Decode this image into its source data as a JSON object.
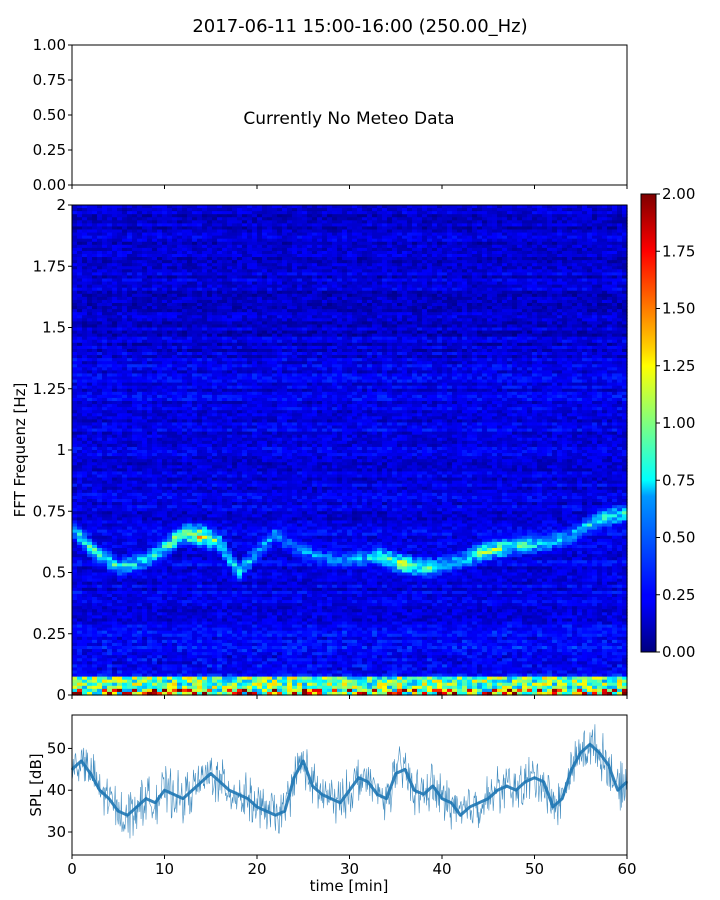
{
  "figure": {
    "title": "2017-06-11 15:00-16:00 (250.00_Hz)"
  },
  "chart_data": [
    {
      "type": "line",
      "panel": "meteo",
      "annotation": "Currently No Meteo Data",
      "ylim": [
        0,
        1
      ],
      "yticks": [
        "0.00",
        "0.25",
        "0.50",
        "0.75",
        "1.00"
      ],
      "xlim": [
        0,
        60
      ],
      "series": []
    },
    {
      "type": "heatmap",
      "panel": "spectrogram",
      "ylabel": "FFT Frequenz [Hz]",
      "xlim": [
        0,
        60
      ],
      "ylim": [
        0,
        2
      ],
      "yticks": [
        "0",
        "0.25",
        "0.5",
        "0.75",
        "1",
        "1.25",
        "1.5",
        "1.75",
        "2"
      ],
      "colormap": "jet",
      "colorbar": {
        "range": [
          0,
          2
        ],
        "ticks": [
          "0.00",
          "0.25",
          "0.50",
          "0.75",
          "1.00",
          "1.25",
          "1.50",
          "1.75",
          "2.00"
        ]
      },
      "background_level": 0.2,
      "low_frequency_band": {
        "freq_max": 0.08,
        "level": 0.9
      },
      "ridge": {
        "time_min": [
          0,
          2,
          5,
          8,
          10,
          12,
          14,
          16,
          18,
          20,
          22,
          24,
          27,
          30,
          33,
          36,
          39,
          42,
          45,
          48,
          51,
          54,
          57,
          60
        ],
        "freq_hz": [
          0.68,
          0.6,
          0.52,
          0.55,
          0.6,
          0.66,
          0.65,
          0.62,
          0.5,
          0.58,
          0.66,
          0.6,
          0.56,
          0.55,
          0.57,
          0.53,
          0.52,
          0.55,
          0.59,
          0.61,
          0.62,
          0.65,
          0.72,
          0.74
        ],
        "level": [
          0.8,
          0.9,
          0.9,
          0.8,
          1.0,
          1.2,
          1.5,
          1.0,
          0.9,
          0.7,
          0.6,
          0.6,
          0.6,
          0.6,
          0.9,
          1.3,
          0.9,
          0.7,
          1.2,
          1.0,
          0.8,
          0.7,
          0.9,
          0.9
        ]
      }
    },
    {
      "type": "line",
      "panel": "spl",
      "xlabel": "time [min]",
      "ylabel": "SPL [dB]",
      "xlim": [
        0,
        60
      ],
      "ylim": [
        24.5,
        58
      ],
      "xticks": [
        "0",
        "10",
        "20",
        "30",
        "40",
        "50",
        "60"
      ],
      "yticks": [
        "30",
        "40",
        "50"
      ],
      "color": "#1f77b4",
      "series": [
        {
          "x": [
            0,
            1,
            2,
            3,
            4,
            5,
            6,
            7,
            8,
            9,
            10,
            11,
            12,
            13,
            14,
            15,
            16,
            17,
            18,
            19,
            20,
            21,
            22,
            23,
            24,
            25,
            26,
            27,
            28,
            29,
            30,
            31,
            32,
            33,
            34,
            35,
            36,
            37,
            38,
            39,
            40,
            41,
            42,
            43,
            44,
            45,
            46,
            47,
            48,
            49,
            50,
            51,
            52,
            53,
            54,
            55,
            56,
            57,
            58,
            59,
            60
          ],
          "y": [
            45,
            47,
            44,
            40,
            38,
            35,
            34,
            36,
            38,
            37,
            40,
            39,
            38,
            40,
            42,
            44,
            42,
            40,
            39,
            38,
            36,
            35,
            34,
            35,
            43,
            47,
            41,
            39,
            38,
            37,
            40,
            43,
            42,
            39,
            38,
            44,
            45,
            40,
            39,
            41,
            38,
            37,
            34,
            36,
            37,
            38,
            40,
            41,
            40,
            42,
            43,
            42,
            36,
            38,
            45,
            49,
            51,
            49,
            46,
            40,
            42
          ]
        }
      ]
    }
  ]
}
